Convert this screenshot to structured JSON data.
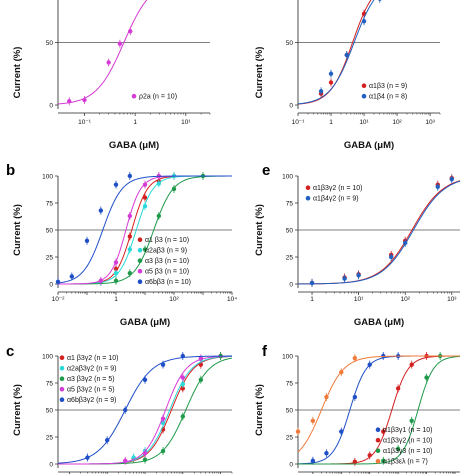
{
  "chart_data": [
    {
      "panel": "",
      "type": "scatter",
      "xscale": "log",
      "xlim": [
        0.03,
        30
      ],
      "ylim": [
        0,
        100
      ],
      "xlabel": "GABA (μM)",
      "ylabel": "Current (%)",
      "x_ticks": [
        "10⁻¹",
        "1",
        "10¹"
      ],
      "y_ticks": [
        "0",
        "50",
        "100"
      ],
      "reference_line": 50,
      "legend_position": "bottom-right",
      "series": [
        {
          "name": "ρ2a (n = 10)",
          "color": "#d63bd6",
          "ec50": 0.6,
          "hill": 1.6,
          "x": [
            0.05,
            0.1,
            0.3,
            0.5,
            0.8,
            3.0
          ],
          "y": [
            3,
            4,
            34,
            49,
            59,
            96
          ]
        }
      ]
    },
    {
      "panel": "",
      "type": "scatter",
      "xscale": "log",
      "xlim": [
        0.1,
        2000
      ],
      "ylim": [
        0,
        100
      ],
      "xlabel": "GABA (μM)",
      "ylabel": "Current (%)",
      "x_ticks": [
        "10⁻¹",
        "1",
        "10¹",
        "10²",
        "10³"
      ],
      "y_ticks": [
        "0",
        "50",
        "100"
      ],
      "reference_line": 50,
      "legend_position": "bottom-right",
      "series": [
        {
          "name": "α1β3 (n = 9)",
          "color": "#d42020",
          "ec50": 4.5,
          "hill": 1.3,
          "x": [
            0.5,
            1,
            3,
            10,
            30
          ],
          "y": [
            9,
            18,
            40,
            73,
            88
          ]
        },
        {
          "name": "α1β4 (n = 8)",
          "color": "#2060c0",
          "ec50": 5.0,
          "hill": 1.2,
          "x": [
            0.5,
            1,
            3,
            10,
            30
          ],
          "y": [
            11,
            25,
            40,
            67,
            85
          ]
        }
      ]
    },
    {
      "panel": "b",
      "type": "scatter",
      "xscale": "log",
      "xlim": [
        0.01,
        10000
      ],
      "ylim": [
        0,
        100
      ],
      "xlabel": "GABA (μM)",
      "ylabel": "Current (%)",
      "x_ticks": [
        "10⁻²",
        "1",
        "10²",
        "10⁴"
      ],
      "y_ticks": [
        "0",
        "25",
        "50",
        "75",
        "100"
      ],
      "reference_line": 50,
      "legend_position": "bottom-right",
      "series": [
        {
          "name": "α1 β3 (n = 10)",
          "color": "#d42020",
          "ec50": 3.5,
          "hill": 1.6,
          "x": [
            0.3,
            1,
            3,
            10,
            30,
            100
          ],
          "y": [
            2,
            14,
            44,
            80,
            95,
            100
          ]
        },
        {
          "name": "α2aβ3 (n = 9)",
          "color": "#29d9d9",
          "ec50": 5.0,
          "hill": 1.5,
          "x": [
            0.3,
            1,
            3,
            10,
            30,
            100
          ],
          "y": [
            2,
            10,
            32,
            72,
            93,
            100
          ]
        },
        {
          "name": "α3 β3 (n = 10)",
          "color": "#1f9a4a",
          "ec50": 20,
          "hill": 1.3,
          "x": [
            1,
            3,
            10,
            30,
            100,
            1000
          ],
          "y": [
            3,
            10,
            32,
            63,
            88,
            100
          ]
        },
        {
          "name": "α5 β3 (n = 10)",
          "color": "#d63bd6",
          "ec50": 2.2,
          "hill": 1.7,
          "x": [
            0.3,
            1,
            3,
            10,
            30
          ],
          "y": [
            3,
            20,
            63,
            92,
            100
          ]
        },
        {
          "name": "α6bβ3 (n = 10)",
          "color": "#1f4fc8",
          "ec50": 0.35,
          "hill": 1.3,
          "x": [
            0.01,
            0.03,
            0.1,
            0.3,
            1,
            3
          ],
          "y": [
            2,
            7,
            40,
            68,
            92,
            100
          ]
        }
      ]
    },
    {
      "panel": "e",
      "type": "scatter",
      "xscale": "log",
      "xlim": [
        0.5,
        1500
      ],
      "ylim": [
        0,
        100
      ],
      "xlabel": "GABA (μM)",
      "ylabel": "Current (%)",
      "x_ticks": [
        "1",
        "10¹",
        "10²",
        "10³"
      ],
      "y_ticks": [
        "0",
        "25",
        "50",
        "75",
        "100"
      ],
      "reference_line": 50,
      "legend_position": "top-left",
      "series": [
        {
          "name": "α1β3γ2 (n = 10)",
          "color": "#d42020",
          "ec50": 140,
          "hill": 1.3,
          "x": [
            1,
            5,
            10,
            50,
            100,
            500,
            1000
          ],
          "y": [
            1,
            6,
            9,
            27,
            40,
            92,
            98
          ]
        },
        {
          "name": "α1β4γ2 (n = 9)",
          "color": "#2060c0",
          "ec50": 150,
          "hill": 1.3,
          "x": [
            1,
            5,
            10,
            50,
            100,
            500,
            1000
          ],
          "y": [
            1,
            5,
            8,
            25,
            38,
            90,
            97
          ]
        }
      ]
    },
    {
      "panel": "c",
      "type": "scatter",
      "xscale": "log",
      "xlim": [
        0.05,
        2000
      ],
      "ylim": [
        0,
        100
      ],
      "xlabel": "",
      "ylabel": "Current (%)",
      "x_ticks": [],
      "y_ticks": [
        "0",
        "25",
        "50",
        "75",
        "100"
      ],
      "reference_line": 50,
      "legend_position": "top-left",
      "series": [
        {
          "name": "α1  β3γ2 (n = 10)",
          "color": "#d42020",
          "ec50": 50,
          "hill": 1.5,
          "x": [
            5,
            10,
            30,
            100,
            300,
            1000
          ],
          "y": [
            5,
            10,
            32,
            70,
            92,
            100
          ]
        },
        {
          "name": "α2aβ3γ2 (n = 9)",
          "color": "#29d9d9",
          "ec50": 45,
          "hill": 1.5,
          "x": [
            5,
            10,
            30,
            100,
            300
          ],
          "y": [
            6,
            12,
            38,
            74,
            97
          ]
        },
        {
          "name": "α3  β3γ2 (n = 5)",
          "color": "#1f9a4a",
          "ec50": 120,
          "hill": 1.4,
          "x": [
            10,
            30,
            100,
            300,
            1000
          ],
          "y": [
            4,
            12,
            44,
            78,
            100
          ]
        },
        {
          "name": "α5  β3γ2 (n = 5)",
          "color": "#d63bd6",
          "ec50": 35,
          "hill": 1.6,
          "x": [
            3,
            10,
            30,
            100,
            300
          ],
          "y": [
            3,
            10,
            42,
            80,
            98
          ]
        },
        {
          "name": "α6bβ3γ2 (n = 9)",
          "color": "#1f4fc8",
          "ec50": 3.0,
          "hill": 1.2,
          "x": [
            0.3,
            1,
            3,
            10,
            30,
            100
          ],
          "y": [
            6,
            22,
            50,
            78,
            92,
            100
          ]
        }
      ]
    },
    {
      "panel": "f",
      "type": "scatter",
      "xscale": "log",
      "xlim": [
        0.003,
        1500
      ],
      "ylim": [
        0,
        100
      ],
      "xlabel": "",
      "ylabel": "Current (%)",
      "x_ticks": [],
      "y_ticks": [
        "0",
        "25",
        "50",
        "75",
        "100"
      ],
      "reference_line": 50,
      "legend_position": "bottom-right",
      "series": [
        {
          "name": "α1β3γ1 (n = 10)",
          "color": "#1f4fc8",
          "ec50": 0.2,
          "hill": 1.5,
          "x": [
            0.01,
            0.03,
            0.1,
            0.3,
            1,
            3,
            10
          ],
          "y": [
            3,
            10,
            30,
            62,
            92,
            100,
            100
          ]
        },
        {
          "name": "α1β3γ2 (n = 10)",
          "color": "#d42020",
          "ec50": 6,
          "hill": 1.5,
          "x": [
            0.3,
            1,
            3,
            10,
            30,
            100
          ],
          "y": [
            2,
            8,
            30,
            70,
            92,
            100
          ]
        },
        {
          "name": "α1β3γ3 (n = 10)",
          "color": "#1f9a4a",
          "ec50": 50,
          "hill": 1.6,
          "x": [
            3,
            10,
            30,
            100,
            300
          ],
          "y": [
            3,
            14,
            40,
            80,
            100
          ]
        },
        {
          "name": "α1β3ελ (n = 7)",
          "color": "#f07a3a",
          "ec50": 0.02,
          "hill": 1.1,
          "x": [
            0.003,
            0.01,
            0.03,
            0.1,
            0.3
          ],
          "y": [
            30,
            40,
            62,
            85,
            98
          ]
        }
      ]
    }
  ]
}
